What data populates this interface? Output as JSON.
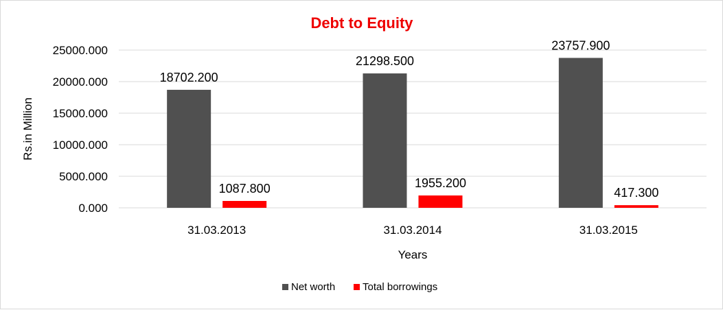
{
  "chart_data": {
    "type": "bar",
    "title": "Debt to Equity",
    "title_color": "#ee0000",
    "xlabel": "Years",
    "ylabel": "Rs.in Million",
    "categories": [
      "31.03.2013",
      "31.03.2014",
      "31.03.2015"
    ],
    "series": [
      {
        "name": "Net worth",
        "color": "#505050",
        "values": [
          18702.2,
          21298.5,
          23757.9
        ],
        "labels": [
          "18702.200",
          "21298.500",
          "23757.900"
        ]
      },
      {
        "name": "Total borrowings",
        "color": "#ff0000",
        "values": [
          1087.8,
          1955.2,
          417.3
        ],
        "labels": [
          "1087.800",
          "1955.200",
          "417.300"
        ]
      }
    ],
    "ylim": [
      0,
      25000
    ],
    "yticks": [
      0,
      5000,
      10000,
      15000,
      20000,
      25000
    ],
    "ytick_labels": [
      "0.000",
      "5000.000",
      "10000.000",
      "15000.000",
      "20000.000",
      "25000.000"
    ],
    "grid": true,
    "legend_position": "bottom"
  }
}
